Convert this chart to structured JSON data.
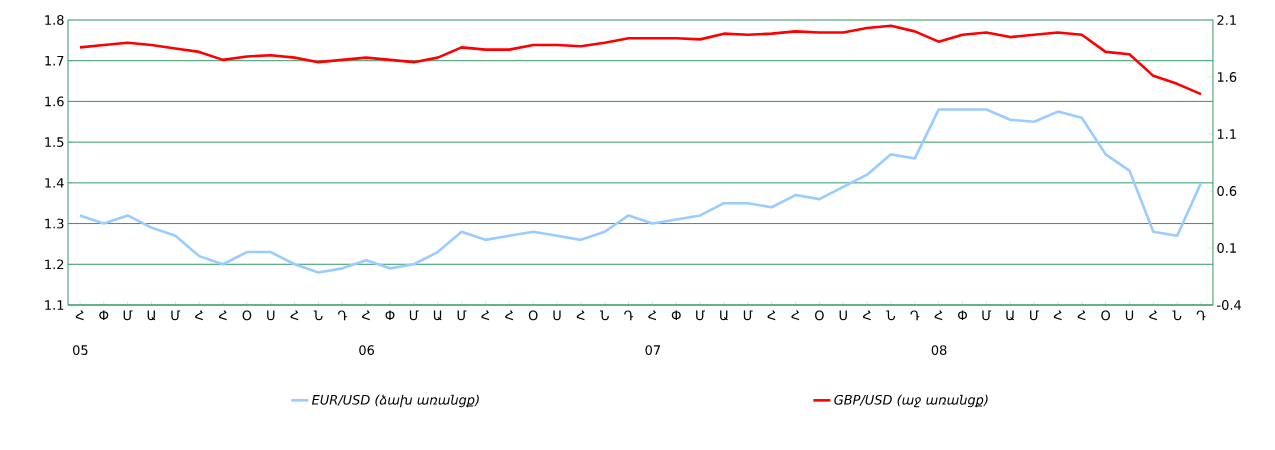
{
  "chart_data": {
    "type": "line",
    "categories": [
      "Հ",
      "Փ",
      "Մ",
      "Ա",
      "Մ",
      "Հ",
      "Հ",
      "Օ",
      "Ս",
      "Հ",
      "Ն",
      "Դ",
      "Հ",
      "Փ",
      "Մ",
      "Ա",
      "Մ",
      "Հ",
      "Հ",
      "Օ",
      "Ս",
      "Հ",
      "Ն",
      "Դ",
      "Հ",
      "Փ",
      "Մ",
      "Ա",
      "Մ",
      "Հ",
      "Հ",
      "Օ",
      "Ս",
      "Հ",
      "Ն",
      "Դ",
      "Հ",
      "Փ",
      "Մ",
      "Ա",
      "Մ",
      "Հ",
      "Հ",
      "Օ",
      "Ս",
      "Հ",
      "Ն",
      "Դ"
    ],
    "annotations": [
      "05",
      "06",
      "07",
      "08"
    ],
    "series": [
      {
        "name": "EUR/USD (ձախ առանցք)",
        "color": "#99ccff",
        "axis": "y",
        "values": [
          1.32,
          1.3,
          1.32,
          1.29,
          1.27,
          1.22,
          1.2,
          1.23,
          1.23,
          1.2,
          1.18,
          1.19,
          1.21,
          1.19,
          1.2,
          1.23,
          1.28,
          1.26,
          1.27,
          1.28,
          1.27,
          1.26,
          1.28,
          1.32,
          1.3,
          1.31,
          1.32,
          1.35,
          1.35,
          1.34,
          1.37,
          1.36,
          1.39,
          1.42,
          1.47,
          1.46,
          1.58,
          1.58,
          1.58,
          1.555,
          1.55,
          1.575,
          1.56,
          1.47,
          1.43,
          1.28,
          1.27,
          1.4
        ]
      },
      {
        "name": "GBP/USD (աջ առանցք)",
        "color": "#ff0000",
        "axis": "y2",
        "values": [
          1.86,
          1.88,
          1.9,
          1.88,
          1.85,
          1.82,
          1.75,
          1.78,
          1.79,
          1.77,
          1.73,
          1.75,
          1.77,
          1.75,
          1.73,
          1.77,
          1.86,
          1.84,
          1.84,
          1.88,
          1.88,
          1.87,
          1.9,
          1.94,
          1.94,
          1.94,
          1.93,
          1.98,
          1.97,
          1.98,
          2.0,
          1.99,
          1.99,
          2.03,
          2.05,
          2.0,
          1.91,
          1.97,
          1.99,
          1.95,
          1.97,
          1.99,
          1.97,
          1.82,
          1.8,
          1.61,
          1.54,
          1.45
        ]
      }
    ],
    "ylim": [
      1.1,
      1.8
    ],
    "yticks": [
      1.1,
      1.2,
      1.3,
      1.4,
      1.5,
      1.6,
      1.7,
      1.8
    ],
    "y2lim": [
      -0.4,
      2.1
    ],
    "y2ticks": [
      -0.4,
      0.1,
      0.6,
      1.1,
      1.6,
      2.1
    ],
    "grid": "y",
    "legend": "bottom"
  }
}
